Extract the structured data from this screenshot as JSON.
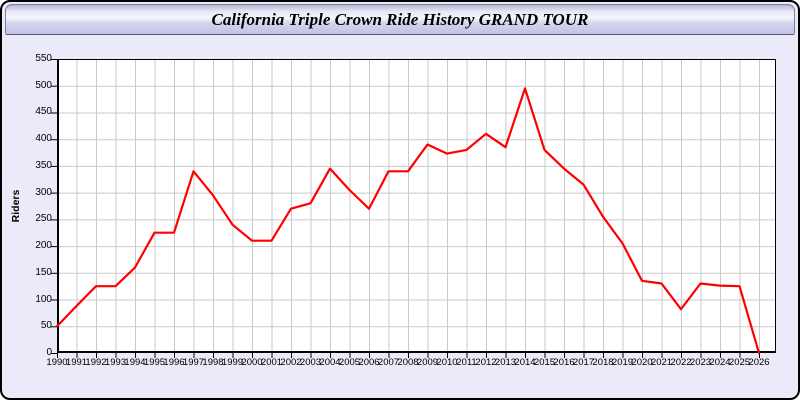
{
  "header": {
    "title": "California Triple Crown Ride History GRAND TOUR"
  },
  "colors": {
    "page_bg": "#eaeaf8",
    "plot_bg": "#ffffff",
    "grid": "#c9c9c9",
    "axis": "#000000",
    "line": "#ff0000",
    "titlebar_gradient_top": "#b6b6d4",
    "titlebar_gradient_mid": "#f6f6fc",
    "titlebar_gradient_bottom": "#c3c3e2",
    "outer_border": "#000000"
  },
  "chart_data": {
    "type": "line",
    "title": "California Triple Crown Ride History GRAND TOUR",
    "xlabel": "",
    "ylabel": "Riders",
    "ylim": [
      0,
      550
    ],
    "ytick_interval": 50,
    "grid": true,
    "legend_position": "none",
    "x": [
      1990,
      1991,
      1992,
      1993,
      1994,
      1995,
      1996,
      1997,
      1998,
      1999,
      2000,
      2001,
      2002,
      2003,
      2004,
      2005,
      2006,
      2007,
      2008,
      2009,
      2010,
      2011,
      2012,
      2013,
      2014,
      2015,
      2016,
      2017,
      2018,
      2019,
      2020,
      2021,
      2022,
      2023,
      2024,
      2025,
      2026
    ],
    "series": [
      {
        "name": "Riders",
        "color": "#ff0000",
        "values": [
          50,
          88,
          125,
          125,
          160,
          225,
          225,
          340,
          295,
          240,
          210,
          210,
          270,
          280,
          345,
          305,
          270,
          340,
          340,
          390,
          373,
          380,
          410,
          385,
          495,
          380,
          345,
          315,
          255,
          205,
          135,
          130,
          82,
          130,
          126,
          125,
          0
        ]
      }
    ]
  }
}
